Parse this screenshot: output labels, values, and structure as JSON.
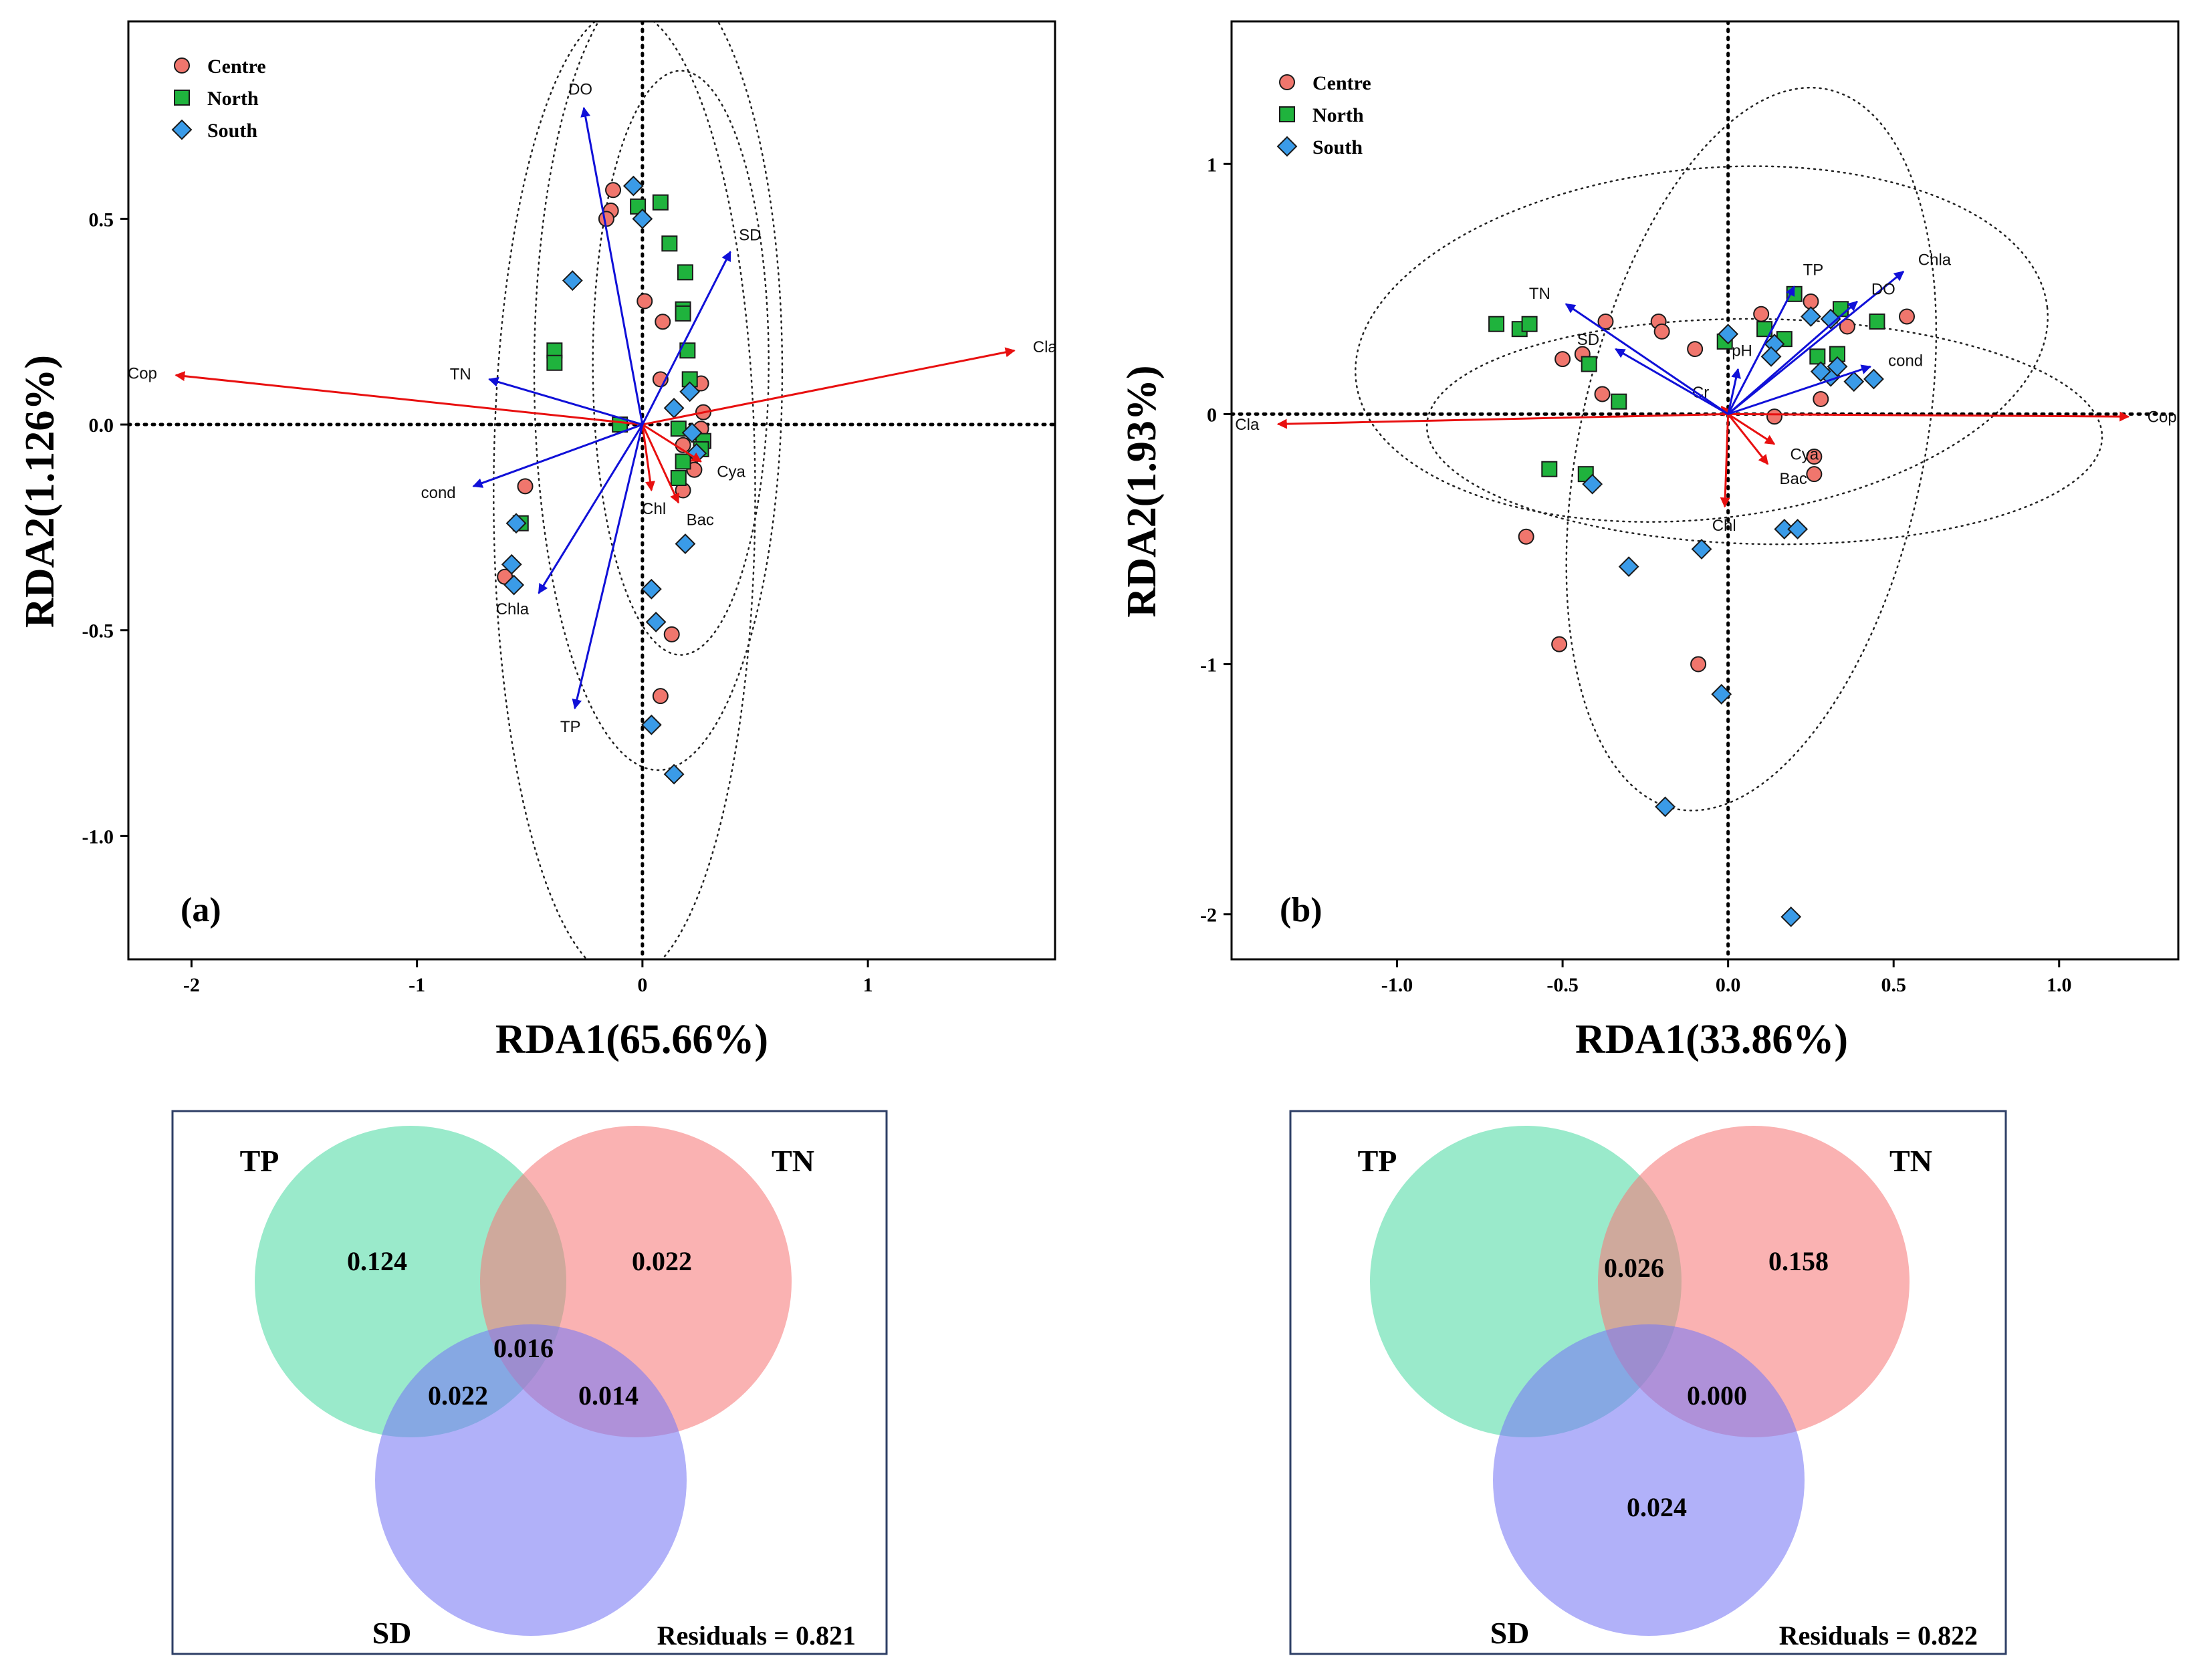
{
  "colors": {
    "centre": "#f0766d",
    "north": "#1fb33d",
    "south": "#3a9be8",
    "env_arrow": "#1010d8",
    "species_arrow": "#e81010",
    "venn_tp": "#3dd69b",
    "venn_tn": "#f77b7b",
    "venn_sd": "#7878f5",
    "frame_box": "#2e3f66"
  },
  "chart_data": [
    {
      "type": "scatter",
      "panel_label": "(a)",
      "xlabel": "RDA1(65.66%)",
      "ylabel": "RDA2(1.126%)",
      "xlim": [
        -2.28,
        1.83
      ],
      "ylim": [
        -1.3,
        0.98
      ],
      "xticks": [
        -2,
        -1,
        0,
        1
      ],
      "xtick_labels": [
        "-2",
        "-1",
        "0",
        "1"
      ],
      "yticks": [
        -1.0,
        -0.5,
        0.0,
        0.5
      ],
      "ytick_labels": [
        "-1.0",
        "-0.5",
        "0.0",
        "0.5"
      ],
      "legend": [
        {
          "name": "Centre",
          "shape": "circle",
          "color_key": "centre"
        },
        {
          "name": "North",
          "shape": "square",
          "color_key": "north"
        },
        {
          "name": "South",
          "shape": "diamond",
          "color_key": "south"
        }
      ],
      "env_arrows": [
        {
          "label": "DO",
          "x": -0.26,
          "y": 0.77
        },
        {
          "label": "SD",
          "x": 0.39,
          "y": 0.42
        },
        {
          "label": "TN",
          "x": -0.68,
          "y": 0.11
        },
        {
          "label": "cond",
          "x": -0.75,
          "y": -0.15
        },
        {
          "label": "Chla",
          "x": -0.46,
          "y": -0.41
        },
        {
          "label": "TP",
          "x": -0.3,
          "y": -0.69
        }
      ],
      "species_arrows": [
        {
          "label": "Cop",
          "x": -2.07,
          "y": 0.12
        },
        {
          "label": "Cla",
          "x": 1.65,
          "y": 0.18
        },
        {
          "label": "Cya",
          "x": 0.26,
          "y": -0.09
        },
        {
          "label": "Bac",
          "x": 0.16,
          "y": -0.19
        },
        {
          "label": "Chl",
          "x": 0.04,
          "y": -0.16
        }
      ],
      "points": {
        "Centre": [
          [
            -0.13,
            0.57
          ],
          [
            -0.14,
            0.52
          ],
          [
            -0.16,
            0.5
          ],
          [
            0.01,
            0.3
          ],
          [
            0.09,
            0.25
          ],
          [
            0.26,
            0.1
          ],
          [
            0.08,
            0.11
          ],
          [
            0.27,
            0.03
          ],
          [
            -0.1,
            0.0
          ],
          [
            0.26,
            -0.01
          ],
          [
            0.18,
            -0.05
          ],
          [
            0.21,
            -0.09
          ],
          [
            0.23,
            -0.11
          ],
          [
            0.18,
            -0.16
          ],
          [
            -0.52,
            -0.15
          ],
          [
            -0.61,
            -0.37
          ],
          [
            0.13,
            -0.51
          ],
          [
            0.08,
            -0.66
          ]
        ],
        "North": [
          [
            0.08,
            0.54
          ],
          [
            -0.02,
            0.53
          ],
          [
            0.12,
            0.44
          ],
          [
            0.19,
            0.37
          ],
          [
            0.18,
            0.28
          ],
          [
            0.18,
            0.27
          ],
          [
            0.2,
            0.18
          ],
          [
            -0.39,
            0.18
          ],
          [
            -0.39,
            0.15
          ],
          [
            0.21,
            0.11
          ],
          [
            -0.1,
            0.0
          ],
          [
            0.16,
            -0.01
          ],
          [
            0.27,
            -0.04
          ],
          [
            0.26,
            -0.06
          ],
          [
            0.18,
            -0.09
          ],
          [
            0.16,
            -0.13
          ],
          [
            -0.54,
            -0.24
          ]
        ],
        "South": [
          [
            -0.04,
            0.58
          ],
          [
            0.0,
            0.5
          ],
          [
            -0.31,
            0.35
          ],
          [
            0.21,
            0.08
          ],
          [
            0.14,
            0.04
          ],
          [
            0.22,
            -0.02
          ],
          [
            0.24,
            -0.07
          ],
          [
            0.19,
            -0.29
          ],
          [
            -0.56,
            -0.24
          ],
          [
            -0.58,
            -0.34
          ],
          [
            -0.57,
            -0.39
          ],
          [
            0.04,
            -0.4
          ],
          [
            0.06,
            -0.48
          ],
          [
            0.04,
            -0.73
          ],
          [
            0.14,
            -0.85
          ]
        ]
      },
      "ellipses": [
        {
          "cx": -0.08,
          "cy": -0.17,
          "rx": 0.58,
          "ry": 1.18
        },
        {
          "cx": 0.07,
          "cy": 0.13,
          "rx": 0.55,
          "ry": 0.97
        },
        {
          "cx": 0.17,
          "cy": 0.15,
          "rx": 0.39,
          "ry": 0.71
        }
      ]
    },
    {
      "type": "scatter",
      "panel_label": "(b)",
      "xlabel": "RDA1(33.86%)",
      "ylabel": "RDA2(1.93%)",
      "xlim": [
        -1.5,
        1.36
      ],
      "ylim": [
        -2.18,
        1.57
      ],
      "xticks": [
        -1.0,
        -0.5,
        0.0,
        0.5,
        1.0
      ],
      "xtick_labels": [
        "-1.0",
        "-0.5",
        "0.0",
        "0.5",
        "1.0"
      ],
      "yticks": [
        -2,
        -1,
        0,
        1
      ],
      "ytick_labels": [
        "-2",
        "-1",
        "0",
        "1"
      ],
      "legend": [
        {
          "name": "Centre",
          "shape": "circle",
          "color_key": "centre"
        },
        {
          "name": "North",
          "shape": "square",
          "color_key": "north"
        },
        {
          "name": "South",
          "shape": "diamond",
          "color_key": "south"
        }
      ],
      "env_arrows": [
        {
          "label": "TN",
          "x": -0.49,
          "y": 0.44
        },
        {
          "label": "SD",
          "x": -0.34,
          "y": 0.26
        },
        {
          "label": "TP",
          "x": 0.2,
          "y": 0.51
        },
        {
          "label": "Chla",
          "x": 0.53,
          "y": 0.57
        },
        {
          "label": "DO",
          "x": 0.39,
          "y": 0.45
        },
        {
          "label": "cond",
          "x": 0.43,
          "y": 0.19
        },
        {
          "label": "pH",
          "x": 0.03,
          "y": 0.18
        }
      ],
      "species_arrows": [
        {
          "label": "Cop",
          "x": 1.21,
          "y": -0.01
        },
        {
          "label": "Cla",
          "x": -1.36,
          "y": -0.04
        },
        {
          "label": "Cya",
          "x": 0.14,
          "y": -0.12
        },
        {
          "label": "Bac",
          "x": 0.12,
          "y": -0.2
        },
        {
          "label": "Chl",
          "x": -0.01,
          "y": -0.37
        },
        {
          "label": "Cr",
          "x": -0.02,
          "y": 0.03
        }
      ],
      "points": {
        "Centre": [
          [
            -0.37,
            0.37
          ],
          [
            -0.21,
            0.37
          ],
          [
            -0.2,
            0.33
          ],
          [
            -0.1,
            0.26
          ],
          [
            0.1,
            0.4
          ],
          [
            0.25,
            0.45
          ],
          [
            0.36,
            0.35
          ],
          [
            0.54,
            0.39
          ],
          [
            -0.44,
            0.24
          ],
          [
            -0.5,
            0.22
          ],
          [
            -0.38,
            0.08
          ],
          [
            0.14,
            -0.01
          ],
          [
            0.28,
            0.06
          ],
          [
            0.26,
            -0.17
          ],
          [
            0.26,
            -0.24
          ],
          [
            -0.61,
            -0.49
          ],
          [
            -0.51,
            -0.92
          ],
          [
            -0.09,
            -1.0
          ]
        ],
        "North": [
          [
            -0.7,
            0.36
          ],
          [
            -0.63,
            0.34
          ],
          [
            -0.6,
            0.36
          ],
          [
            -0.42,
            0.2
          ],
          [
            -0.33,
            0.05
          ],
          [
            0.11,
            0.34
          ],
          [
            0.17,
            0.3
          ],
          [
            0.2,
            0.48
          ],
          [
            0.27,
            0.23
          ],
          [
            0.33,
            0.24
          ],
          [
            0.34,
            0.42
          ],
          [
            0.45,
            0.37
          ],
          [
            -0.54,
            -0.22
          ],
          [
            -0.43,
            -0.24
          ],
          [
            -0.01,
            0.29
          ]
        ],
        "South": [
          [
            -0.41,
            -0.28
          ],
          [
            -0.3,
            -0.61
          ],
          [
            -0.08,
            -0.54
          ],
          [
            0.0,
            0.32
          ],
          [
            0.17,
            -0.46
          ],
          [
            0.21,
            -0.46
          ],
          [
            0.14,
            0.28
          ],
          [
            0.25,
            0.39
          ],
          [
            0.31,
            0.15
          ],
          [
            0.31,
            0.38
          ],
          [
            0.33,
            0.19
          ],
          [
            0.38,
            0.13
          ],
          [
            0.44,
            0.14
          ],
          [
            0.28,
            0.17
          ],
          [
            0.13,
            0.23
          ],
          [
            -0.19,
            -1.57
          ],
          [
            0.19,
            -2.01
          ],
          [
            -0.02,
            -1.12
          ]
        ]
      },
      "ellipses": [
        {
          "cx": -0.08,
          "cy": 0.28,
          "rx": 1.05,
          "ry": 0.7,
          "rot": -6
        },
        {
          "cx": 0.11,
          "cy": -0.07,
          "rx": 1.02,
          "ry": 0.45,
          "rot": 1
        },
        {
          "cx": 0.07,
          "cy": -0.14,
          "rx": 0.52,
          "ry": 1.47,
          "rot": 12
        }
      ]
    }
  ],
  "venn": [
    {
      "label_tp": "TP",
      "label_tn": "TN",
      "label_sd": "SD",
      "residuals_text": "Residuals = 0.821",
      "values": {
        "tp_only": "0.124",
        "tn_only": "0.022",
        "tp_tn_sd": "0.016",
        "tp_sd": "0.022",
        "tn_sd": "0.014"
      }
    },
    {
      "label_tp": "TP",
      "label_tn": "TN",
      "label_sd": "SD",
      "residuals_text": "Residuals = 0.822",
      "values": {
        "tp_tn": "0.026",
        "tn_only": "0.158",
        "tn_sd": "0.000",
        "sd_only": "0.024"
      }
    }
  ]
}
